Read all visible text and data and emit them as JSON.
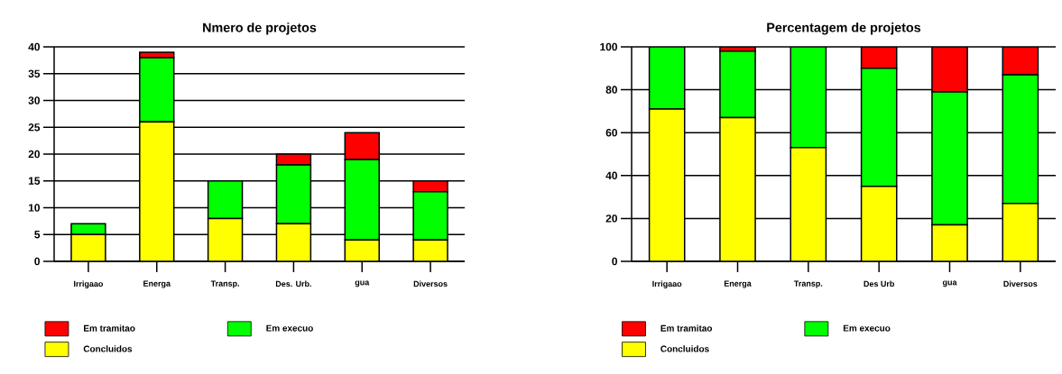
{
  "chart_data": [
    {
      "type": "bar",
      "title": "Nmero de projetos",
      "stacked": true,
      "categories": [
        "Irrigaao",
        "Energa",
        "Transp.",
        "Des. Urb.",
        "gua",
        "Diversos"
      ],
      "series": [
        {
          "name": "Concluidos",
          "color": "#ffff00",
          "values": [
            5,
            26,
            8,
            7,
            4,
            4
          ]
        },
        {
          "name": "Em execuo",
          "color": "#00ff00",
          "values": [
            2,
            12,
            7,
            11,
            15,
            9
          ]
        },
        {
          "name": "Em tramitao",
          "color": "#ff0000",
          "values": [
            0,
            1,
            0,
            2,
            5,
            2
          ]
        }
      ],
      "ylim": [
        0,
        40
      ],
      "yticks": [
        0,
        5,
        10,
        15,
        20,
        25,
        30,
        35,
        40
      ],
      "grid": "y",
      "legend": "bottom"
    },
    {
      "type": "bar",
      "title": "Percentagem de projetos",
      "stacked": true,
      "categories": [
        "Irrigaao",
        "Energa",
        "Transp.",
        "Des  Urb",
        "gua",
        "Diversos"
      ],
      "series": [
        {
          "name": "Concluidos",
          "color": "#ffff00",
          "values": [
            71,
            67,
            53,
            35,
            17,
            27
          ]
        },
        {
          "name": "Em execuo",
          "color": "#00ff00",
          "values": [
            29,
            31,
            47,
            55,
            62,
            60
          ]
        },
        {
          "name": "Em tramitao",
          "color": "#ff0000",
          "values": [
            0,
            2,
            0,
            10,
            21,
            13
          ]
        }
      ],
      "ylim": [
        0,
        100
      ],
      "yticks": [
        0,
        20,
        40,
        60,
        80,
        100
      ],
      "grid": "y",
      "legend": "bottom"
    }
  ]
}
